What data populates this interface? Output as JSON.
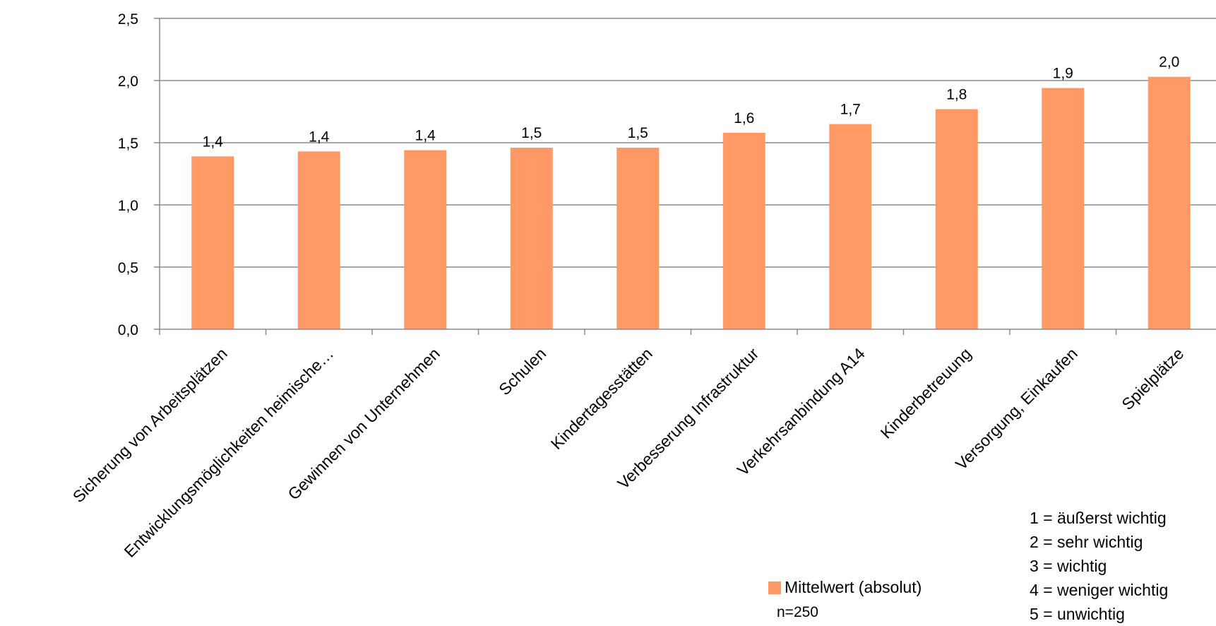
{
  "chart_data": {
    "type": "bar",
    "title": "",
    "xlabel": "",
    "ylabel": "",
    "ylim": [
      0,
      2.5
    ],
    "yticks": [
      "0,0",
      "0,5",
      "1,0",
      "1,5",
      "2,0",
      "2,5"
    ],
    "grid": true,
    "categories": [
      "Sicherung von Arbeitsplätzen",
      "Entwicklungsmöglichkeiten heimische…",
      "Gewinnen von Unternehmen",
      "Schulen",
      "Kindertagesstätten",
      "Verbesserung Infrastruktur",
      "Verkehrsanbindung A14",
      "Kinderbetreuung",
      "Versorgung, Einkaufen",
      "Spielplätze"
    ],
    "values": [
      1.39,
      1.43,
      1.44,
      1.46,
      1.46,
      1.58,
      1.65,
      1.77,
      1.94,
      2.03
    ],
    "data_labels": [
      "1,4",
      "1,4",
      "1,4",
      "1,5",
      "1,5",
      "1,6",
      "1,7",
      "1,8",
      "1,9",
      "2,0"
    ],
    "series": [
      {
        "name": "Mittelwert (absolut)",
        "color": "#FF9966"
      }
    ],
    "legend_position": "bottom-right"
  },
  "legend": {
    "label": "Mittelwert (absolut)"
  },
  "sample_note": "n=250",
  "scale_notes": [
    "1 = äußerst wichtig",
    "2 = sehr wichtig",
    "3 = wichtig",
    "4 = weniger wichtig",
    "5 = unwichtig"
  ]
}
